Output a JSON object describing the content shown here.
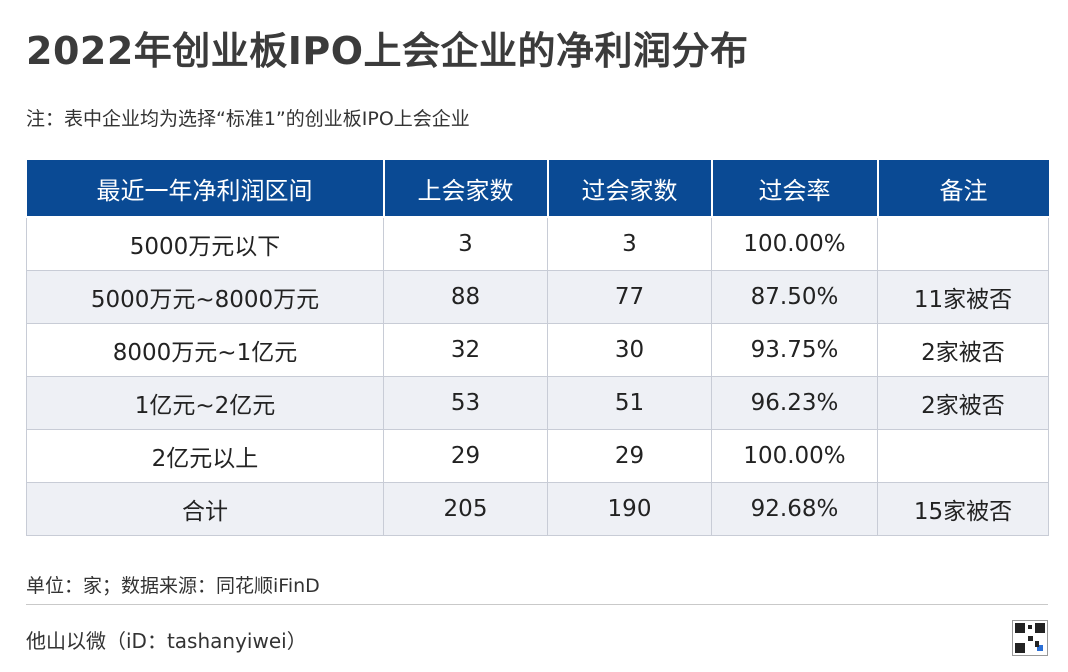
{
  "title": "2022年创业板IPO上会企业的净利润分布",
  "note": "注：表中企业均为选择“标准1”的创业板IPO上会企业",
  "table": {
    "headers": [
      "最近一年净利润区间",
      "上会家数",
      "过会家数",
      "过会率",
      "备注"
    ],
    "rows": [
      [
        "5000万元以下",
        "3",
        "3",
        "100.00%",
        ""
      ],
      [
        "5000万元~8000万元",
        "88",
        "77",
        "87.50%",
        "11家被否"
      ],
      [
        "8000万元~1亿元",
        "32",
        "30",
        "93.75%",
        "2家被否"
      ],
      [
        "1亿元~2亿元",
        "53",
        "51",
        "96.23%",
        "2家被否"
      ],
      [
        "2亿元以上",
        "29",
        "29",
        "100.00%",
        ""
      ],
      [
        "合计",
        "205",
        "190",
        "92.68%",
        "15家被否"
      ]
    ]
  },
  "footer": {
    "unit_source": "单位：家；数据来源：同花顺iFinD",
    "brand": "他山以微（iD：tashanyiwei）"
  },
  "colors": {
    "header_bg": "#0a4a94",
    "header_text": "#ffffff",
    "stripe": "#eef0f5"
  },
  "icons": {
    "qr": "qr-code-icon"
  }
}
